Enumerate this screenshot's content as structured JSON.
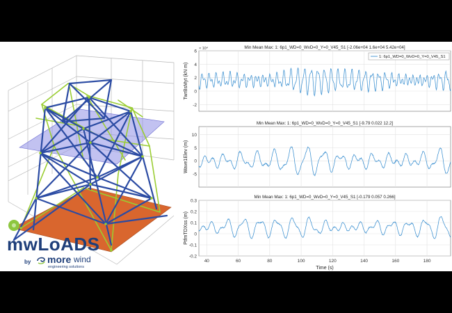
{
  "logo": {
    "product": "mwLoADS",
    "by": "by",
    "brand_bold": "more",
    "brand_light": "wind",
    "tagline": "engineering solutions"
  },
  "colors": {
    "series": "#3a8fd0",
    "plane_blue": "#8f8fe6",
    "seabed": "#d9662e",
    "member_blue": "#2b4ba3",
    "member_green": "#9acd32"
  },
  "chart_data": [
    {
      "type": "line",
      "title": "Min Mean Max: 1: 6p1_WD=0_WvD=0_Y=0_V45_S1 [-2.06e+04 1.6e+04 5.42e+04]",
      "xlabel": "",
      "ylabel": "TwrBsMyt (kN m)",
      "exponent_label": "× 10⁴",
      "xlim": [
        35,
        195
      ],
      "ylim": [
        -3,
        6
      ],
      "yticks": [
        "-2",
        "0",
        "2",
        "4",
        "6"
      ],
      "grid": true,
      "legend": "1: 6p1_WD=0_WvD=0_Y=0_V45_S1",
      "legend_position": "top-right",
      "series": [
        {
          "name": "1: 6p1_WD=0_WvD=0_Y=0_V45_S1",
          "mean": 1.6,
          "amplitude": 1.6,
          "period": 4.3,
          "seed": 1
        }
      ]
    },
    {
      "type": "line",
      "title": "Min Mean Max: 1: 6p1_WD=0_WvD=0_Y=0_V45_S1 [-9.79 0.022 12.2]",
      "xlabel": "",
      "ylabel": "Wave1Elev (m)",
      "xlim": [
        35,
        195
      ],
      "ylim": [
        -10,
        13
      ],
      "yticks": [
        "-5",
        "0",
        "5",
        "10"
      ],
      "grid": true,
      "series": [
        {
          "mean": 0.022,
          "amplitude": 4.2,
          "period": 10.5,
          "seed": 2
        }
      ]
    },
    {
      "type": "line",
      "title": "Min Mean Max: 1: 6p1_WD=0_WvD=0_Y=0_V45_S1 [-0.179 0.057 0.266]",
      "xlabel": "Time (s)",
      "ylabel": "PtfmTDXss (m)",
      "xlim": [
        35,
        195
      ],
      "ylim": [
        -0.2,
        0.3
      ],
      "yticks": [
        "-0.2",
        "-0.1",
        "0",
        "0.1",
        "0.2",
        "0.3"
      ],
      "xticks": [
        "40",
        "60",
        "80",
        "100",
        "120",
        "140",
        "160",
        "180"
      ],
      "grid": true,
      "series": [
        {
          "mean": 0.057,
          "amplitude": 0.08,
          "period": 10.5,
          "seed": 3
        }
      ]
    }
  ]
}
